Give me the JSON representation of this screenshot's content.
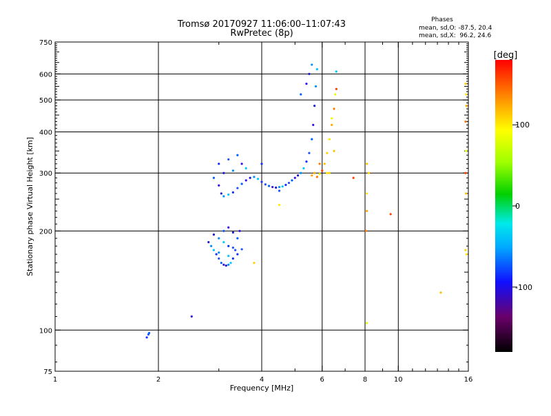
{
  "chart_data": {
    "type": "scatter",
    "title": "Tromsø 20170927 11:06:00–11:07:43",
    "subtitle": "RwPretec (8p)",
    "phases": {
      "heading": "Phases",
      "line_o": "mean, sd,O: -87.5, 20.4",
      "line_x": "mean, sd,X:  96.2, 24.6"
    },
    "xlabel": "Frequency [MHz]",
    "ylabel": "Stationary phase Virtual Height [km]",
    "x_scale": "log",
    "y_scale": "log",
    "xlim": [
      1,
      16
    ],
    "ylim": [
      75,
      750
    ],
    "x_ticks": [
      1,
      2,
      4,
      6,
      8,
      10,
      16
    ],
    "x_tick_labels": [
      "1",
      "2",
      "4",
      "6",
      "8",
      "10",
      "16"
    ],
    "x_gridlines": [
      2,
      4,
      6,
      8,
      10
    ],
    "x_minor_ticks": [
      3,
      5,
      7,
      9,
      11,
      12,
      13,
      14,
      15
    ],
    "y_ticks": [
      75,
      100,
      200,
      300,
      400,
      500,
      600,
      750
    ],
    "y_tick_labels": [
      "75",
      "100",
      "200",
      "300",
      "400",
      "500",
      "600",
      "750"
    ],
    "y_gridlines": [
      100,
      200,
      300,
      400,
      500,
      600
    ],
    "grid": true,
    "colorbar": {
      "label": "[deg]",
      "range": [
        -180,
        180
      ],
      "ticks": [
        100,
        0,
        -100
      ],
      "tick_labels": [
        "100",
        "0",
        "-100"
      ]
    },
    "series": [
      {
        "mode": "O",
        "points": [
          [
            1.85,
            95
          ],
          [
            1.87,
            97
          ],
          [
            1.88,
            98
          ],
          [
            2.5,
            110
          ],
          [
            2.8,
            185
          ],
          [
            2.85,
            180
          ],
          [
            2.9,
            175
          ],
          [
            2.95,
            170
          ],
          [
            3.0,
            165
          ],
          [
            3.05,
            160
          ],
          [
            3.1,
            158
          ],
          [
            3.15,
            157
          ],
          [
            3.2,
            158
          ],
          [
            3.25,
            160
          ],
          [
            3.3,
            165
          ],
          [
            3.35,
            175
          ],
          [
            3.4,
            190
          ],
          [
            3.45,
            200
          ],
          [
            2.9,
            195
          ],
          [
            3.0,
            190
          ],
          [
            3.1,
            185
          ],
          [
            3.2,
            180
          ],
          [
            3.3,
            178
          ],
          [
            3.1,
            200
          ],
          [
            3.2,
            205
          ],
          [
            3.3,
            198
          ],
          [
            3.0,
            172
          ],
          [
            3.2,
            168
          ],
          [
            3.4,
            170
          ],
          [
            3.5,
            176
          ],
          [
            2.9,
            290
          ],
          [
            3.0,
            275
          ],
          [
            3.05,
            260
          ],
          [
            3.1,
            255
          ],
          [
            3.2,
            258
          ],
          [
            3.3,
            262
          ],
          [
            3.4,
            270
          ],
          [
            3.5,
            278
          ],
          [
            3.6,
            285
          ],
          [
            3.7,
            290
          ],
          [
            3.8,
            292
          ],
          [
            3.9,
            288
          ],
          [
            4.0,
            282
          ],
          [
            4.1,
            277
          ],
          [
            4.2,
            274
          ],
          [
            4.3,
            272
          ],
          [
            4.4,
            271
          ],
          [
            4.5,
            272
          ],
          [
            4.6,
            273
          ],
          [
            4.7,
            276
          ],
          [
            4.8,
            280
          ],
          [
            4.9,
            285
          ],
          [
            5.0,
            290
          ],
          [
            5.1,
            295
          ],
          [
            5.2,
            300
          ],
          [
            5.3,
            310
          ],
          [
            5.4,
            325
          ],
          [
            5.5,
            345
          ],
          [
            5.6,
            380
          ],
          [
            5.65,
            420
          ],
          [
            5.7,
            480
          ],
          [
            5.75,
            550
          ],
          [
            5.8,
            620
          ],
          [
            3.0,
            320
          ],
          [
            3.2,
            330
          ],
          [
            3.4,
            340
          ],
          [
            3.5,
            320
          ],
          [
            3.1,
            300
          ],
          [
            3.3,
            305
          ],
          [
            3.6,
            310
          ],
          [
            4.0,
            320
          ],
          [
            4.5,
            265
          ],
          [
            5.2,
            520
          ],
          [
            5.4,
            560
          ],
          [
            5.5,
            600
          ],
          [
            5.6,
            640
          ],
          [
            6.6,
            610
          ]
        ]
      },
      {
        "mode": "X",
        "points": [
          [
            3.8,
            160
          ],
          [
            4.5,
            240
          ],
          [
            5.6,
            295
          ],
          [
            5.8,
            292
          ],
          [
            5.9,
            298
          ],
          [
            6.0,
            305
          ],
          [
            6.1,
            320
          ],
          [
            6.2,
            345
          ],
          [
            6.3,
            380
          ],
          [
            6.4,
            420
          ],
          [
            6.5,
            470
          ],
          [
            6.55,
            520
          ],
          [
            6.6,
            540
          ],
          [
            6.5,
            350
          ],
          [
            6.3,
            300
          ],
          [
            6.2,
            300
          ],
          [
            5.7,
            300
          ],
          [
            5.9,
            320
          ],
          [
            6.4,
            440
          ],
          [
            7.4,
            290
          ],
          [
            8.1,
            320
          ],
          [
            8.2,
            300
          ],
          [
            8.1,
            260
          ],
          [
            8.1,
            230
          ],
          [
            8.05,
            200
          ],
          [
            8.1,
            105
          ],
          [
            9.5,
            225
          ],
          [
            13.3,
            130
          ],
          [
            15.7,
            560
          ],
          [
            15.75,
            520
          ],
          [
            15.8,
            480
          ],
          [
            15.7,
            430
          ],
          [
            15.75,
            350
          ],
          [
            15.7,
            300
          ],
          [
            15.75,
            260
          ],
          [
            15.7,
            175
          ],
          [
            15.8,
            170
          ]
        ]
      }
    ]
  }
}
